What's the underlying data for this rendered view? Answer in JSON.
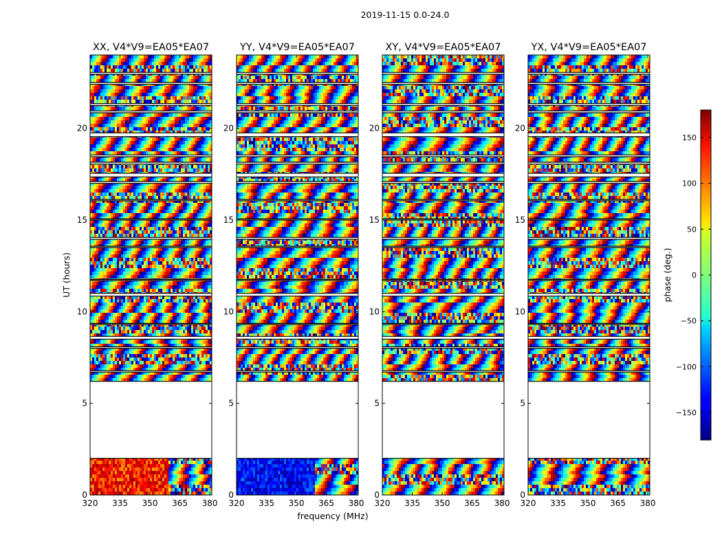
{
  "figure_title": "2019-11-15 0.0-24.0",
  "colors": {
    "axis": "#000000",
    "background": "#ffffff",
    "flagged": "#ffffff",
    "colormap": "jet"
  },
  "chart_data": {
    "type": "heatmap",
    "title": "2019-11-15 0.0-24.0",
    "xlabel": "frequency (MHz)",
    "ylabel": "UT (hours)",
    "xlim": [
      320,
      381
    ],
    "ylim": [
      0,
      24
    ],
    "x_ticks": [
      320,
      335,
      350,
      365,
      380
    ],
    "y_ticks": [
      0,
      5,
      10,
      15,
      20
    ],
    "panels": [
      {
        "title": "XX, V4*V9=EA05*EA07",
        "polarization": "XX"
      },
      {
        "title": "YY, V4*V9=EA05*EA07",
        "polarization": "YY"
      },
      {
        "title": "XY, V4*V9=EA05*EA07",
        "polarization": "XY"
      },
      {
        "title": "YX, V4*V9=EA05*EA07",
        "polarization": "YX"
      }
    ],
    "valid_ut_ranges": [
      [
        0.0,
        2.0
      ],
      [
        6.2,
        24.0
      ]
    ],
    "flagged_ut_ranges": [
      [
        2.0,
        6.2
      ],
      [
        6.7,
        6.78
      ],
      [
        8.0,
        8.08
      ],
      [
        8.5,
        8.65
      ],
      [
        9.3,
        9.36
      ],
      [
        10.85,
        11.0
      ],
      [
        11.7,
        11.76
      ],
      [
        13.5,
        13.57
      ],
      [
        13.95,
        14.05
      ],
      [
        15.0,
        15.06
      ],
      [
        16.05,
        16.12
      ],
      [
        17.0,
        17.1
      ],
      [
        17.35,
        17.55
      ],
      [
        18.05,
        18.15
      ],
      [
        18.45,
        18.55
      ],
      [
        19.55,
        19.75
      ],
      [
        20.85,
        20.95
      ],
      [
        21.25,
        21.35
      ],
      [
        22.4,
        22.5
      ],
      [
        22.95,
        23.05
      ]
    ],
    "colorbar": {
      "label": "phase (deg.)",
      "range": [
        -180,
        180
      ],
      "ticks": [
        -150,
        -100,
        -50,
        0,
        50,
        100,
        150
      ],
      "tick_labels": [
        "−150",
        "−100",
        "−50",
        "0",
        "50",
        "100",
        "150"
      ]
    }
  }
}
